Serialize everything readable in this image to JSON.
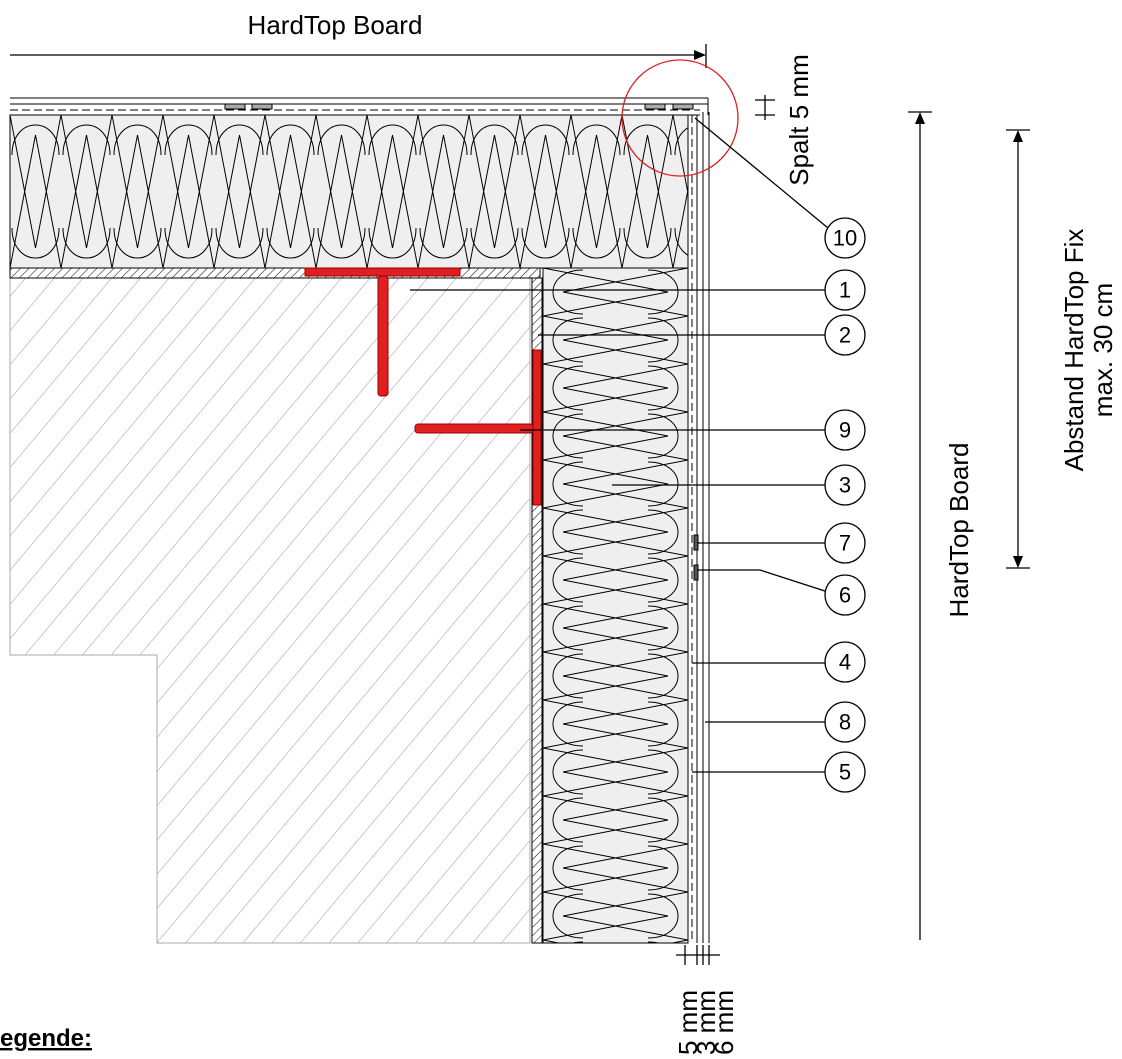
{
  "top_dimension": "HardTop Board",
  "gap_label": "Spalt 5 mm",
  "callouts": [
    "10",
    "1",
    "2",
    "9",
    "3",
    "7",
    "6",
    "4",
    "8",
    "5"
  ],
  "side_dimension": "HardTop Board",
  "spacing_label": [
    "Abstand HardTop Fix",
    "max. 30 cm"
  ],
  "layer_thicknesses": [
    "5 mm",
    "3 mm",
    "6 mm"
  ],
  "legend_heading": "egende:"
}
